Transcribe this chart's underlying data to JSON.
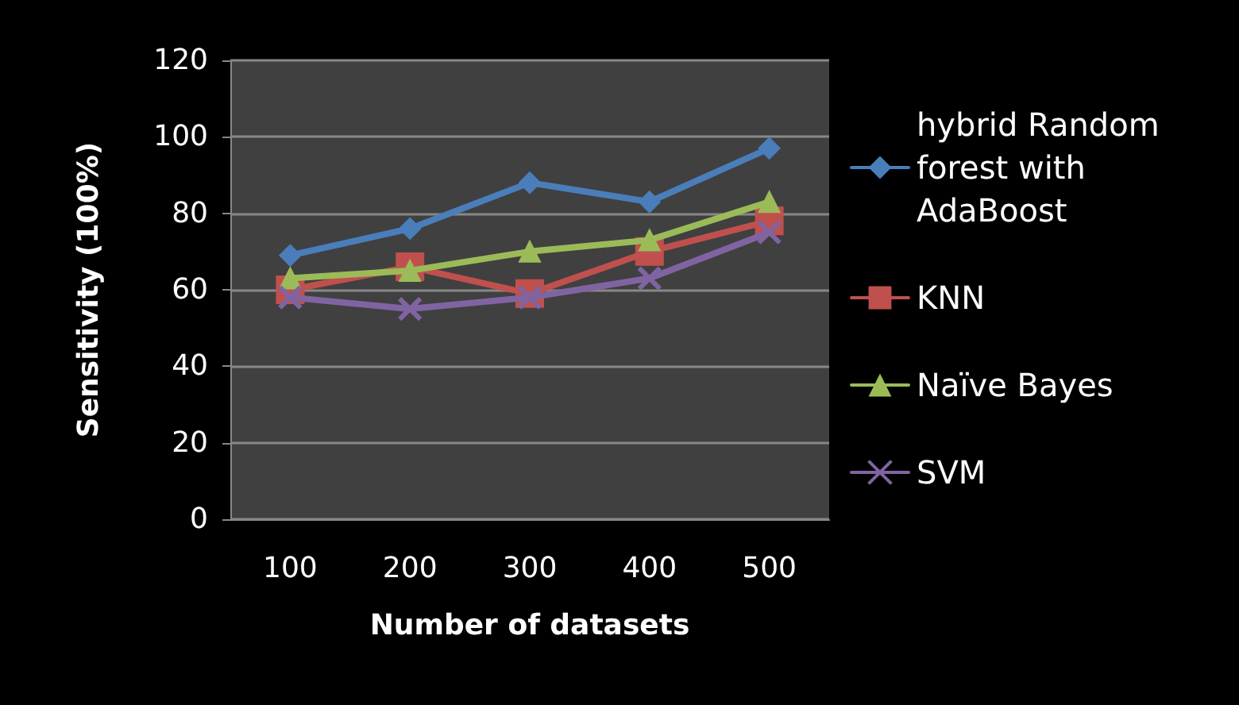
{
  "chart_data": {
    "type": "line",
    "xlabel": "Number of datasets",
    "ylabel": "Sensitivity (100%)",
    "categories": [
      "100",
      "200",
      "300",
      "400",
      "500"
    ],
    "series": [
      {
        "name": "hybrid Random forest with AdaBoost",
        "color": "#4a7ebb",
        "marker": "diamond",
        "values": [
          69,
          76,
          88,
          83,
          97
        ]
      },
      {
        "name": "KNN",
        "color": "#c0504d",
        "marker": "square",
        "values": [
          60,
          66,
          59,
          70,
          78
        ]
      },
      {
        "name": "Naïve Bayes",
        "color": "#9bbb59",
        "marker": "triangle",
        "values": [
          63,
          65,
          70,
          73,
          83
        ]
      },
      {
        "name": "SVM",
        "color": "#8064a2",
        "marker": "cross",
        "values": [
          58,
          55,
          58,
          63,
          75
        ]
      }
    ],
    "ylim": [
      0,
      120
    ],
    "yticks": [
      0,
      20,
      40,
      60,
      80,
      100,
      120
    ],
    "grid": "y",
    "legend": "right"
  }
}
